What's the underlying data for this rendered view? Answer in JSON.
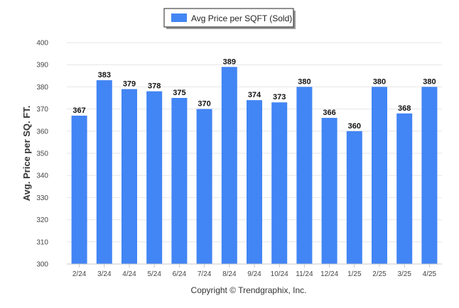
{
  "chart_data": {
    "type": "bar",
    "legend": {
      "label": "Avg Price per SQFT (Sold)",
      "position": "top-center"
    },
    "ylabel": "Avg. Price per SQ. FT.",
    "xlabel": "",
    "ylim": [
      300,
      400
    ],
    "yticks": [
      300,
      310,
      320,
      330,
      340,
      350,
      360,
      370,
      380,
      390,
      400
    ],
    "grid": true,
    "color": "#4285f4",
    "categories": [
      "2/24",
      "3/24",
      "4/24",
      "5/24",
      "6/24",
      "7/24",
      "8/24",
      "9/24",
      "10/24",
      "11/24",
      "12/24",
      "1/25",
      "2/25",
      "3/25",
      "4/25"
    ],
    "series": [
      {
        "name": "Avg Price per SQFT (Sold)",
        "values": [
          367,
          383,
          379,
          378,
          375,
          370,
          389,
          374,
          373,
          380,
          366,
          360,
          380,
          368,
          380
        ]
      }
    ]
  },
  "footer": {
    "copyright": "Copyright © Trendgraphix, Inc."
  }
}
